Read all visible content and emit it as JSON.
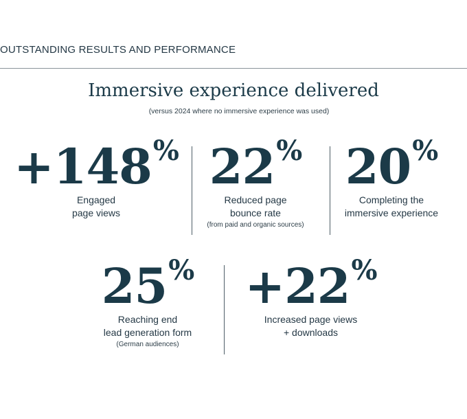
{
  "header": {
    "section_label": "OUTSTANDING RESULTS AND PERFORMANCE",
    "title": "Immersive experience delivered",
    "subtitle": "(versus 2024 where no immersive experience was used)"
  },
  "stats_row1": [
    {
      "value": "+148",
      "unit": "%",
      "line1": "Engaged",
      "line2": "page views",
      "note": ""
    },
    {
      "value": "22",
      "unit": "%",
      "line1": "Reduced page",
      "line2": "bounce rate",
      "note": "(from paid and organic sources)"
    },
    {
      "value": "20",
      "unit": "%",
      "line1": "Completing the",
      "line2": "immersive experience",
      "note": ""
    }
  ],
  "stats_row2": [
    {
      "value": "25",
      "unit": "%",
      "line1": "Reaching end",
      "line2": "lead generation form",
      "note": "(German audiences)"
    },
    {
      "value": "+22",
      "unit": "%",
      "line1": "Increased page views",
      "line2": "+ downloads",
      "note": ""
    }
  ],
  "colors": {
    "text_dark": "#1b3a48",
    "rule": "#8a9399"
  }
}
